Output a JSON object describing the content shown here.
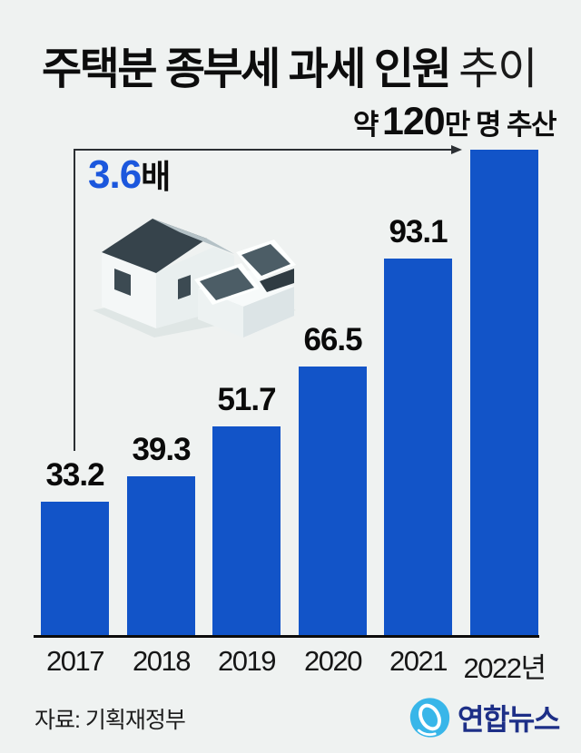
{
  "title": {
    "bold": "주택분 종부세 과세 인원",
    "light": "추이"
  },
  "top_note": {
    "prefix": "약",
    "number": "120",
    "suffix": "만 명 추산"
  },
  "multiplier": {
    "number": "3.6",
    "suffix": "배"
  },
  "source": "자료: 기획재정부",
  "logo": {
    "text": "연합뉴스"
  },
  "colors": {
    "background": "#eff2f1",
    "bar": "#1254c8",
    "accent_blue": "#1b57dd",
    "logo_blue": "#38b6e9",
    "logo_navy": "#1d2f87",
    "arrow": "#2b2f33",
    "roof_dark": "#36434b",
    "roof_light": "#b4c1c6"
  },
  "chart_data": {
    "type": "bar",
    "title": "주택분 종부세 과세 인원 추이",
    "unit": "만 명",
    "categories": [
      "2017",
      "2018",
      "2019",
      "2020",
      "2021",
      "2022년"
    ],
    "values": [
      33.2,
      39.3,
      51.7,
      66.5,
      93.1,
      120
    ],
    "value_labels": [
      "33.2",
      "39.3",
      "51.7",
      "66.5",
      "93.1",
      ""
    ],
    "last_bar_note": "약 120만 명 추산 (2022년, 추정)",
    "growth_note": "3.6배 (2017년 대비 2022년)",
    "ylim": [
      0,
      130
    ],
    "grid": false,
    "legend": false,
    "xlabel": "",
    "ylabel": ""
  }
}
